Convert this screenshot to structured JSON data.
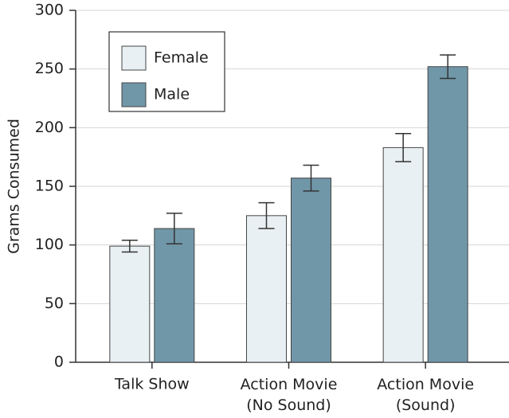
{
  "chart_data": {
    "type": "bar",
    "y_label": "Grams Consumed",
    "categories": [
      "Talk Show",
      "Action Movie\n(No Sound)",
      "Action Movie\n(Sound)"
    ],
    "series": [
      {
        "name": "Female",
        "color": "#e9f0f3",
        "values": [
          99,
          125,
          183
        ],
        "errors": [
          5,
          11,
          12
        ]
      },
      {
        "name": "Male",
        "color": "#7097a8",
        "values": [
          114,
          157,
          252
        ],
        "errors": [
          13,
          11,
          10
        ]
      }
    ],
    "ylim": [
      0,
      300
    ],
    "yticks": [
      0,
      50,
      100,
      150,
      200,
      250,
      300
    ],
    "grid": true,
    "legend": "upper left"
  }
}
